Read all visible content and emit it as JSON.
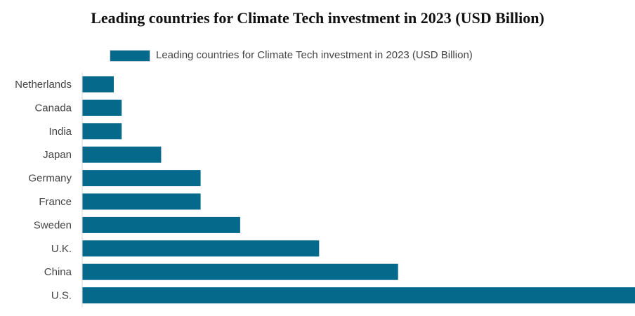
{
  "chart_data": {
    "type": "bar",
    "orientation": "horizontal",
    "title": "Leading countries for Climate Tech investment in 2023 (USD Billion)",
    "categories": [
      "Netherlands",
      "Canada",
      "India",
      "Japan",
      "Germany",
      "France",
      "Sweden",
      "U.K.",
      "China",
      "U.S."
    ],
    "series": [
      {
        "name": "Leading countries for Climate Tech investment in 2023 (USD Billion)",
        "values": [
          0.8,
          1.0,
          1.0,
          2.0,
          3.0,
          3.0,
          4.0,
          6.0,
          8.0,
          14.0
        ],
        "color": "#05698c"
      }
    ],
    "xlim": [
      0,
      14
    ],
    "grid": false,
    "legend_position": "top-center"
  }
}
